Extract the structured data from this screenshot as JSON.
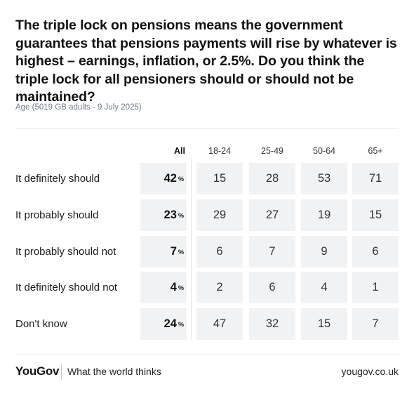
{
  "title": "The triple lock on pensions means the government guarantees that pensions payments will rise by whatever is highest – earnings, inflation, or 2.5%. Do you think the triple lock for all pensioners should or should not be maintained?",
  "subtitle": "Age (5019 GB adults - 9 July 2025)",
  "footer": {
    "brand": "YouGov",
    "tagline": "What the world thinks",
    "url": "yougov.co.uk"
  },
  "chart_data": {
    "type": "table",
    "columns": [
      "All",
      "18-24",
      "25-49",
      "50-64",
      "65+"
    ],
    "percent_symbol": "%",
    "rows": [
      {
        "label": "It definitely should",
        "values": [
          42,
          15,
          28,
          53,
          71
        ]
      },
      {
        "label": "It probably should",
        "values": [
          23,
          29,
          27,
          19,
          15
        ]
      },
      {
        "label": "It probably should not",
        "values": [
          7,
          6,
          7,
          9,
          6
        ]
      },
      {
        "label": "It definitely should not",
        "values": [
          4,
          2,
          6,
          4,
          1
        ]
      },
      {
        "label": "Don't know",
        "values": [
          24,
          47,
          32,
          15,
          7
        ]
      }
    ]
  }
}
